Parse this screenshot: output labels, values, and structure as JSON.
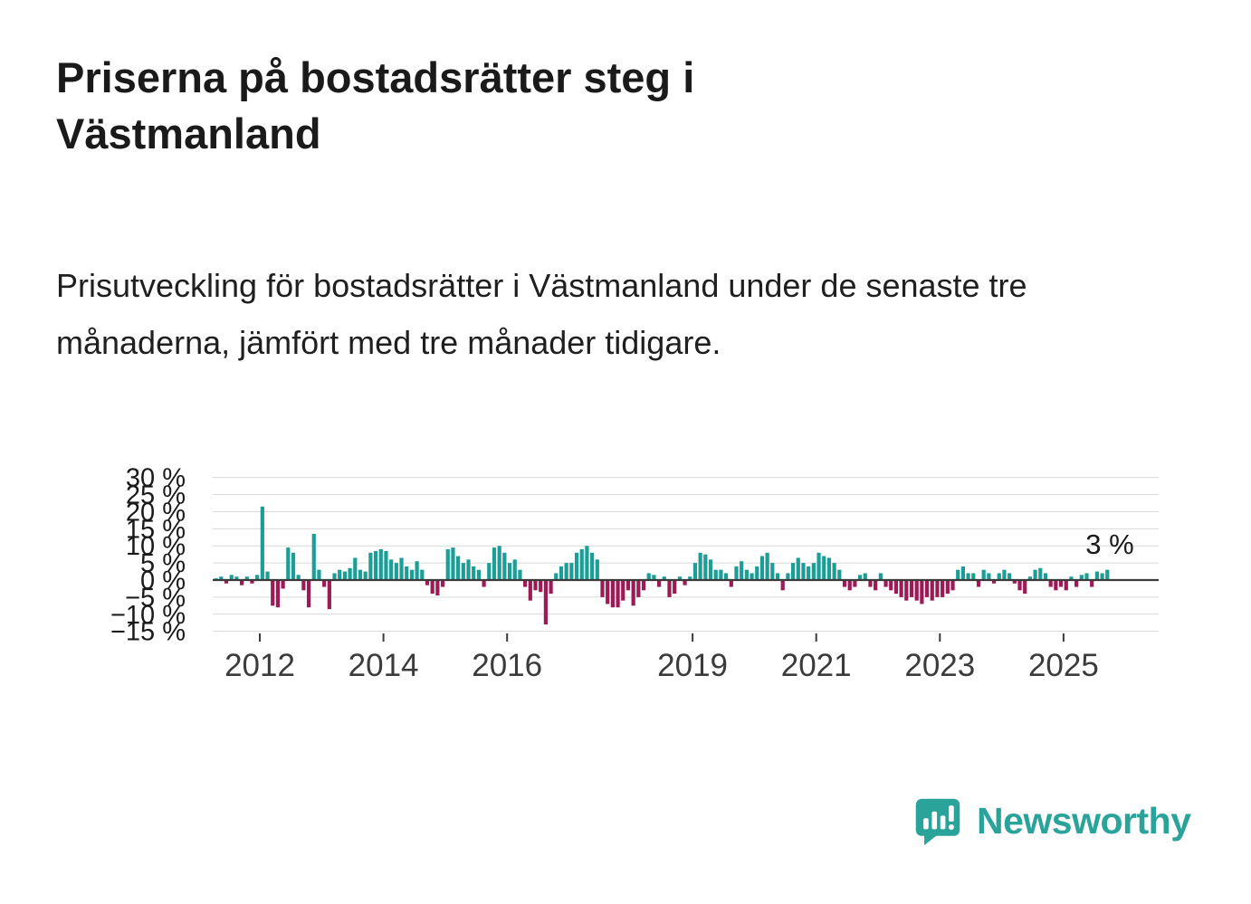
{
  "page": {
    "title": "Priserna på bostadsrätter steg i Västmanland",
    "subtitle": "Prisutveckling för bostadsrätter i Västmanland under de senaste tre månaderna, jämfört med tre månader tidigare."
  },
  "colors": {
    "positive": "#1c9e96",
    "negative": "#9c1a56",
    "accent": "#2aa49a",
    "grid": "#d9d9d9",
    "zero_line": "#3b3b3b",
    "text": "#1a1a1a",
    "axis_text": "#3b3b3b"
  },
  "branding": {
    "name": "Newsworthy",
    "logo_icon": "bar-chart-speech-bubble"
  },
  "chart_data": {
    "type": "bar",
    "unit": "%",
    "freq": "monthly",
    "start": "2011-04",
    "values": [
      0.5,
      1,
      -1,
      1.5,
      1,
      -1.5,
      1,
      -1,
      1.5,
      21.5,
      2.5,
      -7.5,
      -8,
      -2.5,
      9.5,
      8,
      1.5,
      -3,
      -8,
      13.5,
      3,
      -2,
      -8.5,
      2,
      3,
      2.5,
      3.5,
      6.5,
      3,
      2.5,
      8,
      8.5,
      9,
      8.5,
      6,
      5,
      6.5,
      4,
      3,
      5.5,
      3,
      -1.5,
      -4,
      -4.5,
      -2,
      9,
      9.5,
      7,
      5,
      6,
      4,
      3,
      -2,
      5,
      9.5,
      10,
      8,
      5,
      6,
      3,
      -2,
      -6,
      -3,
      -3.5,
      -13,
      -4,
      2,
      4,
      5,
      5,
      8,
      9,
      10,
      8,
      6,
      -5,
      -7,
      -8,
      -8,
      -6,
      -3,
      -7.5,
      -5,
      -3,
      2,
      1.5,
      -2,
      1,
      -5,
      -4,
      1,
      -1.5,
      1,
      5,
      8,
      7.5,
      6,
      3,
      3,
      2,
      -2,
      4,
      5.5,
      3,
      2,
      4,
      7,
      8,
      5,
      2,
      -3,
      2,
      5,
      6.5,
      5,
      4,
      5,
      8,
      7,
      6.5,
      5,
      3,
      -2,
      -3,
      -2,
      1.5,
      2,
      -2,
      -3,
      2,
      -2,
      -3,
      -4,
      -5,
      -6,
      -5,
      -6,
      -7,
      -5,
      -6,
      -5,
      -5,
      -4,
      -3,
      3,
      4,
      2,
      2,
      -2,
      3,
      2,
      -1,
      2,
      3,
      2,
      -1,
      -3,
      -4,
      1,
      3,
      3.5,
      2,
      -2,
      -3,
      -2,
      -3,
      1,
      -2,
      1.5,
      2,
      -2,
      2.5,
      2,
      3
    ],
    "ylim": [
      -15,
      30
    ],
    "y_ticks": [
      30,
      25,
      20,
      15,
      10,
      5,
      0,
      -5,
      -10,
      -15
    ],
    "y_tick_labels": [
      "30 %",
      "25 %",
      "20 %",
      "15 %",
      "10 %",
      "5 %",
      "0 %",
      "−5 %",
      "−10 %",
      "−15 %"
    ],
    "x_tick_years": [
      2012,
      2014,
      2016,
      2019,
      2021,
      2023,
      2025
    ],
    "x_tick_labels": [
      "2012",
      "2014",
      "2016",
      "2019",
      "2021",
      "2023",
      "2025"
    ],
    "annotation": {
      "text": "3 %",
      "at": "2025-09",
      "value": 3
    },
    "grid": true,
    "legend": "none"
  }
}
